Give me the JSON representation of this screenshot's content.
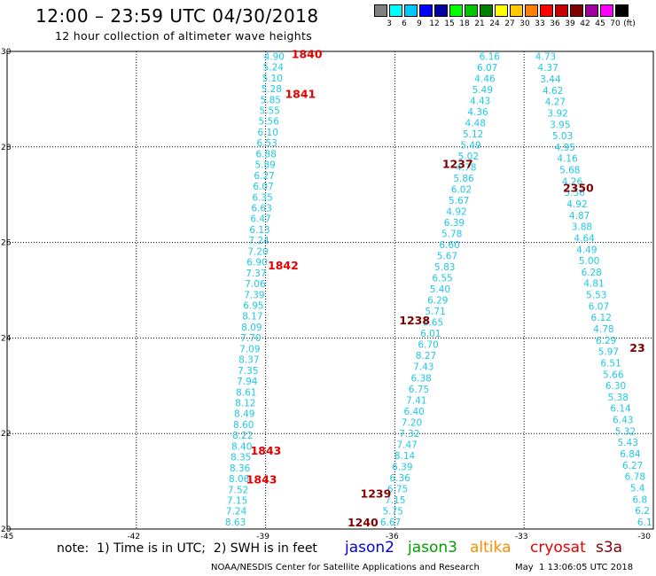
{
  "header": {
    "title": "12:00 – 23:59 UTC 04/30/2018",
    "subtitle": "12 hour collection of altimeter wave heights"
  },
  "legend": {
    "unit": "(ft)",
    "bins": [
      {
        "label": "",
        "color": "#808080"
      },
      {
        "label": "3",
        "color": "#00ffff"
      },
      {
        "label": "6",
        "color": "#00c8ff"
      },
      {
        "label": "9",
        "color": "#0000ff"
      },
      {
        "label": "12",
        "color": "#0000a0"
      },
      {
        "label": "15",
        "color": "#00ff00"
      },
      {
        "label": "18",
        "color": "#00c800"
      },
      {
        "label": "21",
        "color": "#008000"
      },
      {
        "label": "24",
        "color": "#ffff00"
      },
      {
        "label": "27",
        "color": "#ffc800"
      },
      {
        "label": "30",
        "color": "#ff8000"
      },
      {
        "label": "33",
        "color": "#ff0000"
      },
      {
        "label": "36",
        "color": "#c80000"
      },
      {
        "label": "39",
        "color": "#800000"
      },
      {
        "label": "42",
        "color": "#a000a0"
      },
      {
        "label": "45",
        "color": "#ff00ff"
      },
      {
        "label": "70",
        "color": "#000000"
      }
    ]
  },
  "map": {
    "lon_ticks": [
      "-45",
      "-42",
      "-39",
      "-36",
      "-33",
      "-30"
    ],
    "lat_ticks": [
      "20",
      "22",
      "24",
      "26",
      "28",
      "30"
    ],
    "lon_range": [
      -45,
      -30
    ],
    "lat_range": [
      20,
      30
    ],
    "grid": "dotted"
  },
  "colors": {
    "swh_text": "#1ec8e6",
    "time_red": "#e60000",
    "time_dark": "#800000"
  },
  "tracks": [
    {
      "name": "track-a",
      "lon_top": -38.8,
      "lon_bottom": -39.7,
      "values": [
        "4.90",
        "5.24",
        "5.10",
        "5.28",
        "5.85",
        "5.55",
        "5.56",
        "6.10",
        "6.53",
        "6.88",
        "5.89",
        "6.27",
        "6.07",
        "6.35",
        "6.63",
        "6.47",
        "6.13",
        "7.24",
        "7.20",
        "6.90",
        "7.37",
        "7.06",
        "7.39",
        "6.95",
        "8.17",
        "8.09",
        "7.70",
        "7.09",
        "8.37",
        "7.35",
        "7.94",
        "8.61",
        "8.12",
        "8.49",
        "8.60",
        "8.22",
        "8.40",
        "8.35",
        "8.36",
        "8.06",
        "7.52",
        "7.15",
        "7.24",
        "8.63"
      ]
    },
    {
      "name": "track-b",
      "lon_top": -33.8,
      "lon_bottom": -36.1,
      "values": [
        "6.16",
        "6.07",
        "4.46",
        "5.49",
        "4.43",
        "4.36",
        "4.48",
        "5.12",
        "5.49",
        "5.02",
        "4.78",
        "5.86",
        "6.02",
        "5.67",
        "4.92",
        "6.39",
        "5.78",
        "6.60",
        "5.67",
        "5.83",
        "6.55",
        "5.40",
        "6.29",
        "5.71",
        "6.65",
        "6.01",
        "6.70",
        "8.27",
        "7.43",
        "6.38",
        "6.75",
        "7.41",
        "6.40",
        "7.20",
        "7.32",
        "7.47",
        "8.14",
        "6.39",
        "6.36",
        "6.75",
        "7.15",
        "5.75",
        "6.67"
      ]
    },
    {
      "name": "track-c",
      "lon_top": -32.5,
      "lon_bottom": -30.2,
      "values": [
        "4.73",
        "4.37",
        "3.44",
        "4.62",
        "4.27",
        "3.92",
        "3.95",
        "5.03",
        "4.95",
        "4.16",
        "5.68",
        "4.26",
        "5.56",
        "4.92",
        "4.87",
        "3.88",
        "4.64",
        "4.49",
        "5.00",
        "6.28",
        "4.81",
        "5.53",
        "6.07",
        "6.12",
        "4.78",
        "6.29",
        "5.97",
        "6.51",
        "5.66",
        "6.30",
        "5.38",
        "6.14",
        "6.43",
        "5.32",
        "5.43",
        "6.84",
        "6.27",
        "6.78",
        "5.4",
        "6.8",
        "6.2",
        "6.1"
      ]
    }
  ],
  "time_labels": [
    {
      "text": "1840",
      "lon": -38.4,
      "lat": 29.95,
      "style": "red"
    },
    {
      "text": "1841",
      "lon": -38.55,
      "lat": 29.12,
      "style": "red"
    },
    {
      "text": "1842",
      "lon": -38.95,
      "lat": 25.53,
      "style": "red"
    },
    {
      "text": "1843",
      "lon": -39.35,
      "lat": 21.65,
      "style": "red"
    },
    {
      "text": "1843",
      "lon": -39.45,
      "lat": 21.05,
      "style": "red"
    },
    {
      "text": "1237",
      "lon": -34.9,
      "lat": 27.65,
      "style": "dark"
    },
    {
      "text": "2350",
      "lon": -32.1,
      "lat": 27.15,
      "style": "dark"
    },
    {
      "text": "1238",
      "lon": -35.9,
      "lat": 24.38,
      "style": "dark"
    },
    {
      "text": "1239",
      "lon": -36.8,
      "lat": 20.75,
      "style": "dark"
    },
    {
      "text": "1240",
      "lon": -37.1,
      "lat": 20.15,
      "style": "dark"
    },
    {
      "text": "23",
      "lon": -30.55,
      "lat": 23.8,
      "style": "dark"
    }
  ],
  "footer": {
    "note": "note:  1) Time is in UTC;  2) SWH is in feet",
    "satellites": [
      {
        "name": "jason2",
        "color": "#0000e6"
      },
      {
        "name": "jason3",
        "color": "#00a000"
      },
      {
        "name": "altika",
        "color": "#ff8c00"
      },
      {
        "name": "cryosat",
        "color": "#e60000"
      },
      {
        "name": "s3a",
        "color": "#800000"
      }
    ],
    "credit": "NOAA/NESDIS Center for Satellite Applications and Research",
    "timestamp": "May  1 13:06:05 UTC 2018"
  }
}
